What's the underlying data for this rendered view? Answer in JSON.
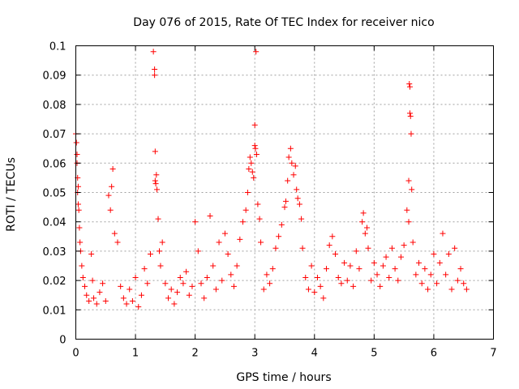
{
  "chart_data": {
    "type": "scatter",
    "title": "Day 076 of 2015, Rate Of TEC Index for receiver nico",
    "xlabel": "GPS time / hours",
    "ylabel": "ROTI / TECUs",
    "xlim": [
      0,
      7
    ],
    "ylim": [
      0,
      0.1
    ],
    "xticks": [
      0,
      1,
      2,
      3,
      4,
      5,
      6,
      7
    ],
    "xtick_labels": [
      "0",
      "1",
      "2",
      "3",
      "4",
      "5",
      "6",
      "7"
    ],
    "yticks": [
      0,
      0.01,
      0.02,
      0.03,
      0.04,
      0.05,
      0.06,
      0.07,
      0.08,
      0.09,
      0.1
    ],
    "ytick_labels": [
      "0",
      "0.01",
      "0.02",
      "0.03",
      "0.04",
      "0.05",
      "0.06",
      "0.07",
      "0.08",
      "0.09",
      "0.1"
    ],
    "grid": true,
    "marker": "+",
    "color": "#ff0000",
    "series": [
      {
        "name": "ROTI",
        "x": [
          0.0,
          0.01,
          0.02,
          0.02,
          0.03,
          0.03,
          0.04,
          0.04,
          0.05,
          0.06,
          0.07,
          0.08,
          0.1,
          0.12,
          0.15,
          0.18,
          0.22,
          0.26,
          0.28,
          0.3,
          0.35,
          0.4,
          0.45,
          0.5,
          0.55,
          0.58,
          0.6,
          0.62,
          0.65,
          0.7,
          0.75,
          0.8,
          0.85,
          0.9,
          0.95,
          1.0,
          1.05,
          1.1,
          1.15,
          1.2,
          1.25,
          1.3,
          1.32,
          1.32,
          1.33,
          1.33,
          1.34,
          1.35,
          1.36,
          1.38,
          1.4,
          1.42,
          1.45,
          1.5,
          1.55,
          1.6,
          1.65,
          1.7,
          1.75,
          1.8,
          1.85,
          1.9,
          1.95,
          2.0,
          2.05,
          2.1,
          2.15,
          2.2,
          2.25,
          2.3,
          2.35,
          2.4,
          2.45,
          2.5,
          2.55,
          2.6,
          2.65,
          2.7,
          2.75,
          2.8,
          2.85,
          2.88,
          2.9,
          2.92,
          2.94,
          2.96,
          2.98,
          3.0,
          3.0,
          3.01,
          3.02,
          3.03,
          3.05,
          3.08,
          3.1,
          3.15,
          3.2,
          3.25,
          3.3,
          3.35,
          3.4,
          3.45,
          3.5,
          3.52,
          3.55,
          3.57,
          3.6,
          3.62,
          3.65,
          3.68,
          3.7,
          3.72,
          3.75,
          3.78,
          3.8,
          3.85,
          3.9,
          3.95,
          4.0,
          4.05,
          4.1,
          4.15,
          4.2,
          4.25,
          4.3,
          4.35,
          4.4,
          4.45,
          4.5,
          4.55,
          4.6,
          4.65,
          4.7,
          4.75,
          4.8,
          4.82,
          4.85,
          4.88,
          4.9,
          4.95,
          5.0,
          5.05,
          5.1,
          5.15,
          5.2,
          5.25,
          5.3,
          5.35,
          5.4,
          5.45,
          5.5,
          5.55,
          5.58,
          5.58,
          5.59,
          5.6,
          5.6,
          5.61,
          5.62,
          5.63,
          5.65,
          5.7,
          5.75,
          5.8,
          5.85,
          5.9,
          5.95,
          6.0,
          6.05,
          6.1,
          6.15,
          6.2,
          6.25,
          6.3,
          6.35,
          6.4,
          6.45,
          6.5,
          6.55
        ],
        "y": [
          0.07,
          0.067,
          0.063,
          0.06,
          0.055,
          0.05,
          0.052,
          0.046,
          0.044,
          0.038,
          0.033,
          0.03,
          0.025,
          0.021,
          0.018,
          0.015,
          0.013,
          0.029,
          0.02,
          0.014,
          0.012,
          0.016,
          0.019,
          0.013,
          0.049,
          0.044,
          0.052,
          0.058,
          0.036,
          0.033,
          0.018,
          0.014,
          0.012,
          0.017,
          0.013,
          0.021,
          0.011,
          0.015,
          0.024,
          0.019,
          0.029,
          0.098,
          0.092,
          0.09,
          0.064,
          0.054,
          0.053,
          0.056,
          0.051,
          0.041,
          0.03,
          0.025,
          0.033,
          0.019,
          0.014,
          0.017,
          0.012,
          0.016,
          0.021,
          0.019,
          0.023,
          0.015,
          0.018,
          0.04,
          0.03,
          0.019,
          0.014,
          0.021,
          0.042,
          0.025,
          0.017,
          0.033,
          0.02,
          0.036,
          0.029,
          0.022,
          0.018,
          0.025,
          0.034,
          0.04,
          0.044,
          0.05,
          0.058,
          0.062,
          0.06,
          0.057,
          0.055,
          0.073,
          0.066,
          0.065,
          0.098,
          0.063,
          0.046,
          0.041,
          0.033,
          0.017,
          0.022,
          0.019,
          0.024,
          0.031,
          0.035,
          0.039,
          0.045,
          0.047,
          0.054,
          0.062,
          0.065,
          0.06,
          0.056,
          0.059,
          0.051,
          0.048,
          0.046,
          0.041,
          0.031,
          0.021,
          0.017,
          0.025,
          0.016,
          0.021,
          0.018,
          0.014,
          0.024,
          0.032,
          0.035,
          0.029,
          0.021,
          0.019,
          0.026,
          0.02,
          0.025,
          0.018,
          0.03,
          0.024,
          0.04,
          0.043,
          0.036,
          0.038,
          0.031,
          0.02,
          0.026,
          0.022,
          0.018,
          0.025,
          0.028,
          0.021,
          0.031,
          0.024,
          0.02,
          0.028,
          0.032,
          0.044,
          0.054,
          0.04,
          0.087,
          0.086,
          0.077,
          0.076,
          0.07,
          0.051,
          0.033,
          0.022,
          0.026,
          0.019,
          0.024,
          0.017,
          0.022,
          0.029,
          0.019,
          0.026,
          0.036,
          0.022,
          0.029,
          0.017,
          0.031,
          0.02,
          0.024,
          0.019,
          0.017
        ]
      }
    ]
  }
}
